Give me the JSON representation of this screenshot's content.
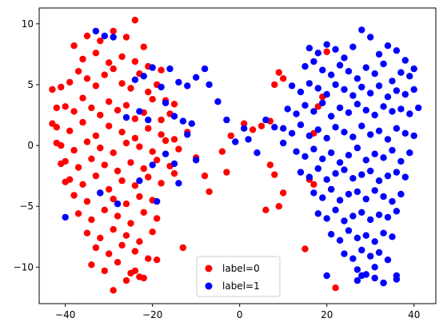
{
  "chart_data": {
    "type": "scatter",
    "title": "",
    "xlabel": "",
    "ylabel": "",
    "xlim": [
      -46,
      45
    ],
    "ylim": [
      -13,
      11.3
    ],
    "xticks": [
      -40,
      -20,
      0,
      20,
      40
    ],
    "xtick_labels": [
      "−40",
      "−20",
      "0",
      "20",
      "40"
    ],
    "yticks": [
      -10,
      -5,
      0,
      5,
      10
    ],
    "ytick_labels": [
      "−10",
      "−5",
      "0",
      "5",
      "10"
    ],
    "grid": false,
    "legend_position": "bottom-center",
    "series": [
      {
        "name": "label=0",
        "color": "#ff0000",
        "x": [
          -41,
          -39,
          -37,
          -35,
          -33,
          -31,
          -29,
          -27,
          -25,
          -23,
          -21,
          -19,
          -17,
          -40,
          -38,
          -36,
          -34,
          -32,
          -30,
          -28,
          -26,
          -24,
          -22,
          -20,
          -18,
          -16,
          -42,
          -39,
          -36,
          -33,
          -30,
          -27,
          -24,
          -21,
          -18,
          -15,
          -41,
          -38,
          -35,
          -32,
          -29,
          -26,
          -23,
          -20,
          -17,
          -14,
          -40,
          -37,
          -34,
          -31,
          -28,
          -25,
          -22,
          -19,
          -16,
          -39,
          -36,
          -33,
          -30,
          -27,
          -24,
          -21,
          -18,
          -15,
          -38,
          -35,
          -32,
          -29,
          -26,
          -23,
          -20,
          -37,
          -34,
          -31,
          -28,
          -25,
          -22,
          -19,
          -35,
          -32,
          -29,
          -26,
          -23,
          -20,
          -33,
          -30,
          -27,
          -24,
          -21,
          -43,
          -42,
          -43,
          -42,
          -41,
          -40,
          -38,
          -35,
          -32,
          -29,
          -26,
          -24,
          -22,
          -36,
          -33,
          -30,
          -27,
          -24,
          -21,
          -18,
          -15,
          -12,
          -34,
          -31,
          -28,
          -25,
          -22,
          -19,
          -13,
          -29,
          -26,
          -24,
          -23,
          -10,
          -8,
          -7,
          -4,
          -3,
          -2,
          1,
          3,
          5,
          7,
          9,
          10,
          8,
          9,
          6,
          10,
          8,
          7,
          20,
          19,
          18,
          17,
          15,
          16,
          17,
          22,
          21
        ],
        "y": [
          4.8,
          5.2,
          6.1,
          5.5,
          4.9,
          5.8,
          6.3,
          5.1,
          4.7,
          5.9,
          4.4,
          5.0,
          3.7,
          3.2,
          2.8,
          3.9,
          3.1,
          2.5,
          3.6,
          2.9,
          3.3,
          2.2,
          2.7,
          3.8,
          2.1,
          2.6,
          1.5,
          1.2,
          1.9,
          0.8,
          1.6,
          1.1,
          0.6,
          1.4,
          0.9,
          0.5,
          0.0,
          -0.4,
          0.3,
          -0.2,
          -0.6,
          0.2,
          -0.1,
          -0.5,
          0.4,
          -0.3,
          -1.3,
          -1.8,
          -1.1,
          -1.6,
          -2.1,
          -1.4,
          -1.9,
          -1.2,
          -1.7,
          -2.8,
          -3.2,
          -2.5,
          -3.6,
          -2.9,
          -3.3,
          -2.6,
          -3.1,
          -2.3,
          -4.1,
          -4.6,
          -3.9,
          -4.4,
          -4.8,
          -4.2,
          -4.5,
          -5.6,
          -6.1,
          -5.3,
          -5.8,
          -6.4,
          -5.5,
          -6.0,
          -7.2,
          -7.6,
          -6.9,
          -7.4,
          -7.9,
          -7.1,
          -8.4,
          -8.9,
          -8.2,
          -8.7,
          -9.3,
          4.6,
          3.1,
          1.8,
          0.2,
          -1.5,
          -3.0,
          8.2,
          9.0,
          8.6,
          9.4,
          8.9,
          10.3,
          8.1,
          7.1,
          7.6,
          6.8,
          7.3,
          6.9,
          6.5,
          6.2,
          3.4,
          1.1,
          -9.8,
          -10.3,
          -9.6,
          -10.5,
          -10.9,
          -9.4,
          -8.4,
          -11.9,
          -11.1,
          -10.3,
          -10.8,
          -1.0,
          -2.5,
          -3.8,
          -0.5,
          -2.2,
          0.8,
          1.8,
          1.3,
          1.6,
          2.0,
          6.0,
          5.5,
          5.0,
          -5.0,
          -5.3,
          -3.9,
          -2.4,
          -1.6,
          7.7,
          4.0,
          3.2,
          1.0,
          -8.5,
          -2.8,
          -3.2,
          -11.7,
          -3.6
        ]
      },
      {
        "name": "label=1",
        "color": "#0000ff",
        "x": [
          16,
          18,
          20,
          22,
          24,
          26,
          28,
          30,
          32,
          34,
          36,
          38,
          40,
          15,
          17,
          19,
          21,
          23,
          25,
          27,
          29,
          31,
          33,
          35,
          37,
          39,
          12,
          14,
          16,
          18,
          20,
          22,
          24,
          26,
          28,
          30,
          32,
          34,
          36,
          38,
          40,
          11,
          13,
          15,
          17,
          19,
          21,
          23,
          25,
          27,
          29,
          31,
          33,
          35,
          37,
          39,
          41,
          10,
          12,
          14,
          16,
          18,
          20,
          22,
          24,
          26,
          28,
          30,
          32,
          34,
          36,
          38,
          40,
          13,
          15,
          17,
          19,
          21,
          23,
          25,
          27,
          29,
          31,
          33,
          35,
          37,
          39,
          14,
          16,
          18,
          20,
          22,
          24,
          26,
          28,
          30,
          32,
          34,
          36,
          38,
          17,
          19,
          21,
          23,
          25,
          27,
          29,
          31,
          33,
          35,
          37,
          18,
          20,
          22,
          24,
          26,
          28,
          30,
          32,
          34,
          36,
          21,
          23,
          25,
          27,
          29,
          31,
          33,
          35,
          24,
          26,
          28,
          30,
          32,
          34,
          27,
          29,
          31,
          33,
          -33,
          -31,
          -29,
          -24,
          -22,
          -20,
          -18,
          -16,
          -14,
          -12,
          -10,
          -8,
          -7,
          -5,
          -26,
          -23,
          -21,
          -17,
          -15,
          -13,
          -11,
          -40,
          -32,
          -28,
          -23,
          -19,
          -14,
          -20,
          -17,
          -15,
          -12,
          -10,
          -3,
          -1,
          1,
          2,
          4,
          6,
          8,
          10,
          27,
          28,
          33,
          36,
          20,
          31,
          36
        ],
        "y": [
          8.0,
          7.6,
          8.3,
          7.9,
          7.2,
          8.1,
          9.5,
          8.9,
          7.5,
          8.2,
          7.8,
          7.0,
          6.3,
          6.5,
          6.9,
          6.2,
          5.8,
          6.6,
          6.1,
          5.5,
          6.4,
          5.9,
          6.7,
          5.3,
          6.0,
          5.7,
          4.9,
          4.4,
          5.1,
          4.7,
          4.2,
          5.0,
          4.6,
          4.1,
          4.8,
          4.3,
          4.9,
          4.0,
          4.5,
          4.2,
          4.6,
          3.0,
          2.6,
          3.3,
          2.8,
          3.5,
          2.4,
          3.1,
          2.7,
          3.4,
          2.9,
          2.5,
          3.2,
          2.8,
          3.0,
          2.6,
          3.1,
          1.4,
          1.0,
          1.7,
          0.8,
          1.3,
          0.6,
          1.5,
          1.1,
          0.7,
          1.6,
          0.9,
          1.2,
          0.5,
          1.4,
          1.0,
          0.8,
          -0.5,
          -0.9,
          -0.3,
          -1.1,
          -0.6,
          -1.4,
          -0.8,
          -0.2,
          -1.2,
          -0.7,
          -1.0,
          -0.4,
          -1.3,
          -0.6,
          -2.2,
          -2.6,
          -1.9,
          -2.8,
          -2.3,
          -2.0,
          -2.7,
          -2.4,
          -2.1,
          -2.9,
          -2.5,
          -2.2,
          -2.6,
          -3.9,
          -4.3,
          -3.6,
          -4.5,
          -4.0,
          -3.8,
          -4.4,
          -3.7,
          -4.2,
          -4.6,
          -4.0,
          -5.6,
          -6.0,
          -5.3,
          -6.2,
          -5.8,
          -5.5,
          -6.1,
          -5.7,
          -5.9,
          -5.4,
          -7.3,
          -7.8,
          -7.0,
          -7.6,
          -7.4,
          -7.9,
          -7.2,
          -7.5,
          -8.9,
          -9.3,
          -8.6,
          -9.1,
          -8.8,
          -9.4,
          -10.2,
          -10.6,
          -10.0,
          -11.3,
          9.4,
          9.0,
          8.9,
          5.4,
          5.7,
          6.4,
          4.8,
          6.3,
          5.2,
          4.9,
          5.6,
          6.3,
          5.0,
          3.6,
          2.3,
          2.8,
          2.1,
          3.5,
          2.4,
          2.0,
          1.8,
          -5.9,
          -3.9,
          -4.8,
          -2.9,
          -4.6,
          -3.1,
          -1.6,
          -0.7,
          -1.5,
          0.9,
          -1.2,
          2.1,
          0.3,
          1.4,
          0.5,
          -0.6,
          2.1,
          1.5,
          0.2,
          -11.1,
          -10.7,
          -11.3,
          -11.0,
          -10.7,
          -10.9,
          -10.7
        ]
      }
    ]
  }
}
